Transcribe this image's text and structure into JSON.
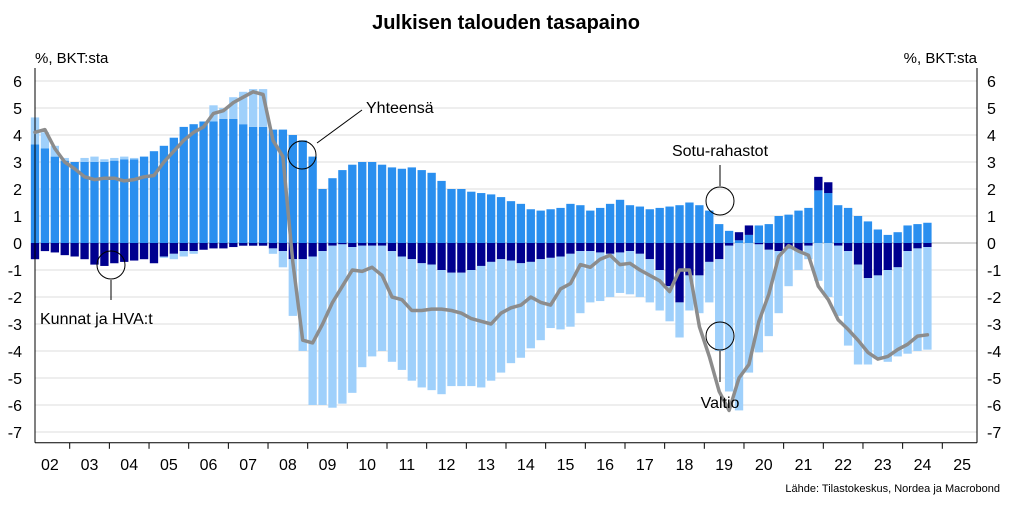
{
  "chart_data": {
    "type": "bar",
    "title": "Julkisen talouden tasapaino",
    "ylabel_left": "%, BKT:sta",
    "ylabel_right": "%, BKT:sta",
    "source": "Lähde: Tilastokeskus, Nordea ja Macrobond",
    "ylim": [
      -7.4,
      6.5
    ],
    "yticks": [
      6,
      5,
      4,
      3,
      2,
      1,
      0,
      -1,
      -2,
      -3,
      -4,
      -5,
      -6,
      -7
    ],
    "x_labels": [
      "02",
      "03",
      "04",
      "05",
      "06",
      "07",
      "08",
      "09",
      "10",
      "11",
      "12",
      "13",
      "14",
      "15",
      "16",
      "17",
      "18",
      "19",
      "20",
      "21",
      "22",
      "23",
      "24",
      "25"
    ],
    "grid": true,
    "quarters_start": "2002Q1",
    "series": [
      {
        "name": "Sotu-rahastot",
        "kind": "stacked-bar",
        "color": "#2a8fef",
        "values": [
          3.65,
          3.5,
          3.2,
          3.05,
          3.0,
          3.0,
          3.0,
          3.0,
          3.05,
          3.1,
          3.1,
          3.2,
          3.4,
          3.6,
          3.9,
          4.3,
          4.4,
          4.5,
          4.5,
          4.6,
          4.6,
          4.4,
          4.3,
          4.3,
          4.2,
          4.2,
          4.0,
          3.8,
          3.2,
          2.0,
          2.4,
          2.7,
          2.9,
          3.0,
          3.0,
          2.9,
          2.8,
          2.75,
          2.8,
          2.7,
          2.6,
          2.3,
          2.0,
          2.0,
          1.9,
          1.85,
          1.8,
          1.7,
          1.55,
          1.45,
          1.25,
          1.2,
          1.25,
          1.3,
          1.45,
          1.4,
          1.2,
          1.3,
          1.45,
          1.6,
          1.4,
          1.35,
          1.25,
          1.3,
          1.35,
          1.4,
          1.5,
          1.4,
          1.2,
          0.7,
          0.45,
          0.1,
          0.3,
          0.65,
          0.7,
          1.0,
          1.05,
          1.2,
          1.3,
          1.95,
          1.85,
          1.4,
          1.3,
          1.0,
          0.8,
          0.5,
          0.3,
          0.4,
          0.65,
          0.7,
          0.75
        ]
      },
      {
        "name": "Kunnat ja HVA:t",
        "kind": "stacked-bar",
        "color": "#00008f",
        "values": [
          -0.6,
          -0.3,
          -0.35,
          -0.45,
          -0.5,
          -0.6,
          -0.8,
          -0.85,
          -0.75,
          -0.7,
          -0.65,
          -0.6,
          -0.75,
          -0.5,
          -0.4,
          -0.3,
          -0.3,
          -0.25,
          -0.2,
          -0.2,
          -0.15,
          -0.1,
          -0.1,
          -0.1,
          -0.2,
          -0.3,
          -0.6,
          -0.6,
          -0.5,
          -0.3,
          -0.1,
          -0.05,
          -0.15,
          -0.1,
          -0.1,
          -0.1,
          -0.3,
          -0.5,
          -0.6,
          -0.75,
          -0.8,
          -1.0,
          -1.1,
          -1.1,
          -1.0,
          -0.85,
          -0.7,
          -0.6,
          -0.65,
          -0.75,
          -0.7,
          -0.6,
          -0.55,
          -0.5,
          -0.4,
          -0.3,
          -0.3,
          -0.35,
          -0.4,
          -0.35,
          -0.3,
          -0.4,
          -0.6,
          -1.0,
          -1.6,
          -2.2,
          -1.2,
          -1.2,
          -0.7,
          -0.6,
          -0.1,
          0.3,
          0.35,
          -0.05,
          -0.25,
          -0.3,
          -0.2,
          -0.3,
          -0.1,
          0.5,
          0.4,
          -0.1,
          -0.3,
          -0.8,
          -1.3,
          -1.2,
          -1.0,
          -0.9,
          -0.3,
          -0.2,
          -0.15
        ]
      },
      {
        "name": "Valtio",
        "kind": "stacked-bar",
        "color": "#9fd0fb",
        "values": [
          1.0,
          0.6,
          0.4,
          0.1,
          0.0,
          0.15,
          0.2,
          0.1,
          0.1,
          0.1,
          0.05,
          0.0,
          0.0,
          -0.05,
          -0.2,
          -0.2,
          -0.1,
          0.0,
          0.6,
          0.4,
          0.8,
          1.2,
          1.4,
          1.4,
          -0.2,
          -0.6,
          -2.1,
          -3.4,
          -5.5,
          -5.7,
          -6.0,
          -5.9,
          -5.4,
          -4.5,
          -4.1,
          -3.9,
          -4.1,
          -4.2,
          -4.5,
          -4.6,
          -4.65,
          -4.6,
          -4.2,
          -4.2,
          -4.3,
          -4.5,
          -4.4,
          -4.2,
          -3.8,
          -3.5,
          -3.2,
          -3.0,
          -2.6,
          -2.7,
          -2.7,
          -2.3,
          -1.9,
          -1.8,
          -1.6,
          -1.5,
          -1.6,
          -1.6,
          -1.6,
          -1.5,
          -1.3,
          -1.3,
          -1.3,
          -1.4,
          -1.5,
          -3.4,
          -5.4,
          -6.2,
          -4.8,
          -4.0,
          -3.2,
          -2.3,
          -1.4,
          -0.7,
          -0.5,
          -1.4,
          -2.0,
          -2.6,
          -3.5,
          -3.7,
          -3.2,
          -3.1,
          -3.4,
          -3.3,
          -3.8,
          -3.8,
          -3.8
        ]
      },
      {
        "name": "Yhteensä",
        "kind": "line",
        "color": "#8c8c8c",
        "values": [
          4.1,
          4.2,
          3.5,
          3.0,
          2.75,
          2.45,
          2.35,
          2.4,
          2.4,
          2.3,
          2.35,
          2.45,
          2.5,
          3.0,
          3.4,
          3.8,
          4.1,
          4.3,
          4.8,
          4.9,
          5.2,
          5.4,
          5.6,
          5.5,
          3.8,
          3.2,
          -0.7,
          -3.6,
          -3.7,
          -3.0,
          -2.2,
          -1.6,
          -1.0,
          -1.05,
          -0.9,
          -1.2,
          -2.0,
          -2.1,
          -2.5,
          -2.5,
          -2.45,
          -2.45,
          -2.5,
          -2.6,
          -2.8,
          -2.9,
          -3.0,
          -2.6,
          -2.4,
          -2.3,
          -2.0,
          -2.2,
          -2.3,
          -1.7,
          -1.5,
          -0.8,
          -0.9,
          -0.6,
          -0.45,
          -0.8,
          -0.75,
          -1.0,
          -1.2,
          -1.4,
          -1.8,
          -1.0,
          -1.0,
          -3.1,
          -4.2,
          -5.5,
          -6.2,
          -5.0,
          -4.5,
          -2.9,
          -1.9,
          -0.5,
          -0.1,
          -0.3,
          -0.45,
          -1.6,
          -2.1,
          -2.85,
          -3.2,
          -3.6,
          -4.05,
          -4.3,
          -4.2,
          -3.95,
          -3.75,
          -3.45,
          -3.4
        ]
      }
    ],
    "annotations": [
      {
        "text": "Yhteensä",
        "target_series": "Yhteensä"
      },
      {
        "text": "Sotu-rahastot",
        "target_series": "Sotu-rahastot"
      },
      {
        "text": "Kunnat ja HVA:t",
        "target_series": "Kunnat ja HVA:t"
      },
      {
        "text": "Valtio",
        "target_series": "Valtio"
      }
    ]
  }
}
